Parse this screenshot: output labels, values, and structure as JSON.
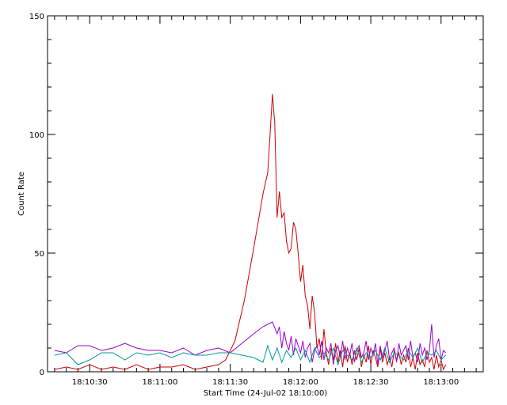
{
  "chart_data": {
    "type": "line",
    "xlabel": "Start Time (24-Jul-02 18:10:00)",
    "ylabel": "Count Rate",
    "x_unit": "seconds after 18:10:00",
    "xlim": [
      12,
      198
    ],
    "ylim": [
      0,
      150
    ],
    "x_ticks": [
      {
        "value": 30,
        "label": "18:10:30"
      },
      {
        "value": 60,
        "label": "18:11:00"
      },
      {
        "value": 90,
        "label": "18:11:30"
      },
      {
        "value": 120,
        "label": "18:12:00"
      },
      {
        "value": 150,
        "label": "18:12:30"
      },
      {
        "value": 180,
        "label": "18:13:00"
      }
    ],
    "y_ticks": [
      {
        "value": 0,
        "label": "0"
      },
      {
        "value": 50,
        "label": "50"
      },
      {
        "value": 100,
        "label": "100"
      },
      {
        "value": 150,
        "label": "150"
      }
    ],
    "grid": false,
    "legend": "none",
    "series": [
      {
        "color": "#cc0000",
        "x": [
          15,
          20,
          25,
          30,
          35,
          40,
          45,
          50,
          55,
          60,
          65,
          70,
          75,
          80,
          85,
          88,
          92,
          96,
          100,
          104,
          106,
          107,
          108,
          109,
          110,
          111,
          112,
          113,
          114,
          115,
          116,
          117,
          118,
          119,
          120,
          121,
          122,
          123,
          124,
          125,
          126,
          127,
          128,
          129,
          130,
          131,
          132,
          133,
          134,
          135,
          136,
          137,
          138,
          139,
          140,
          141,
          142,
          143,
          144,
          145,
          146,
          147,
          148,
          149,
          150,
          151,
          152,
          153,
          154,
          155,
          156,
          157,
          158,
          159,
          160,
          161,
          162,
          163,
          164,
          165,
          166,
          167,
          168,
          169,
          170,
          171,
          172,
          173,
          174,
          175,
          176,
          177,
          178,
          179,
          180,
          181,
          182
        ],
        "y": [
          1,
          2,
          1,
          3,
          1,
          2,
          1,
          3,
          1,
          2,
          2,
          3,
          1,
          2,
          3,
          5,
          13,
          30,
          52,
          75,
          84,
          100,
          117,
          105,
          65,
          76,
          65,
          67,
          55,
          50,
          52,
          63,
          60,
          50,
          38,
          45,
          32,
          28,
          18,
          32,
          25,
          10,
          14,
          5,
          18,
          8,
          3,
          10,
          5,
          12,
          4,
          9,
          2,
          11,
          4,
          8,
          3,
          9,
          5,
          10,
          2,
          7,
          4,
          11,
          3,
          9,
          6,
          2,
          10,
          4,
          8,
          3,
          6,
          2,
          9,
          5,
          8,
          3,
          7,
          4,
          10,
          2,
          6,
          1,
          8,
          3,
          5,
          2,
          9,
          4,
          6,
          1,
          7,
          2,
          5,
          1,
          3
        ]
      },
      {
        "color": "#9900cc",
        "x": [
          15,
          20,
          25,
          30,
          35,
          40,
          45,
          50,
          55,
          60,
          65,
          70,
          75,
          80,
          85,
          90,
          95,
          100,
          104,
          106,
          108,
          110,
          111,
          112,
          113,
          114,
          115,
          116,
          117,
          118,
          119,
          120,
          121,
          122,
          123,
          124,
          125,
          126,
          127,
          128,
          129,
          130,
          131,
          132,
          133,
          134,
          135,
          136,
          137,
          138,
          139,
          140,
          141,
          142,
          143,
          144,
          145,
          146,
          147,
          148,
          149,
          150,
          151,
          152,
          153,
          154,
          155,
          156,
          157,
          158,
          159,
          160,
          161,
          162,
          163,
          164,
          165,
          166,
          167,
          168,
          169,
          170,
          171,
          172,
          173,
          174,
          175,
          176,
          177,
          178,
          179,
          180,
          181,
          182
        ],
        "y": [
          9,
          8,
          11,
          11,
          9,
          10,
          12,
          10,
          9,
          9,
          8,
          10,
          7,
          9,
          10,
          8,
          12,
          16,
          19,
          20,
          21,
          16,
          19,
          10,
          17,
          12,
          9,
          15,
          7,
          14,
          11,
          8,
          13,
          6,
          10,
          12,
          4,
          9,
          11,
          7,
          13,
          5,
          10,
          8,
          12,
          3,
          9,
          11,
          6,
          13,
          5,
          10,
          7,
          12,
          4,
          9,
          11,
          6,
          8,
          13,
          5,
          10,
          7,
          12,
          3,
          11,
          6,
          9,
          13,
          5,
          8,
          10,
          4,
          12,
          7,
          9,
          11,
          5,
          13,
          6,
          8,
          4,
          12,
          7,
          10,
          5,
          9,
          20,
          6,
          11,
          14,
          5,
          9,
          8
        ]
      },
      {
        "color": "#009999",
        "x": [
          15,
          20,
          25,
          30,
          35,
          40,
          45,
          50,
          55,
          60,
          65,
          70,
          75,
          80,
          85,
          90,
          95,
          100,
          104,
          106,
          108,
          110,
          112,
          114,
          116,
          118,
          120,
          122,
          124,
          126,
          128,
          130,
          132,
          134,
          136,
          138,
          140,
          142,
          144,
          146,
          148,
          150,
          152,
          154,
          156,
          158,
          160,
          162,
          164,
          166,
          168,
          170,
          172,
          174,
          176,
          178,
          180,
          182
        ],
        "y": [
          7,
          8,
          3,
          5,
          8,
          8,
          5,
          8,
          7,
          8,
          6,
          8,
          7,
          7,
          8,
          8,
          7,
          6,
          4,
          11,
          5,
          10,
          4,
          9,
          6,
          10,
          5,
          9,
          4,
          10,
          6,
          8,
          5,
          10,
          3,
          9,
          7,
          5,
          10,
          4,
          8,
          6,
          9,
          5,
          10,
          4,
          8,
          7,
          5,
          9,
          6,
          10,
          4,
          8,
          7,
          9,
          5,
          7
        ]
      }
    ]
  }
}
